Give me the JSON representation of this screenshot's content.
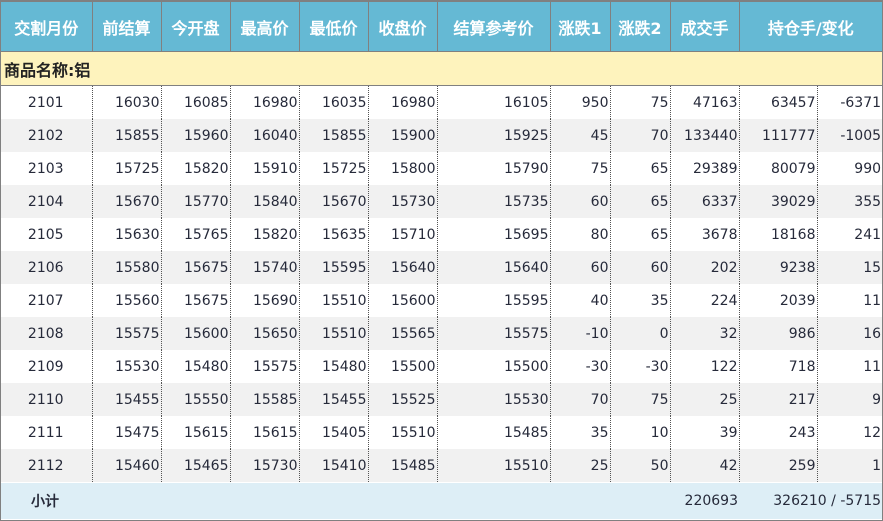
{
  "headers": [
    "交割月份",
    "前结算",
    "今开盘",
    "最高价",
    "最低价",
    "收盘价",
    "结算参考价",
    "涨跌1",
    "涨跌2",
    "成交手",
    "持仓手/变化"
  ],
  "category_label": "商品名称:铝",
  "rows": [
    [
      "2101",
      "16030",
      "16085",
      "16980",
      "16035",
      "16980",
      "16105",
      "950",
      "75",
      "47163",
      "63457",
      "-6371"
    ],
    [
      "2102",
      "15855",
      "15960",
      "16040",
      "15855",
      "15900",
      "15925",
      "45",
      "70",
      "133440",
      "111777",
      "-1005"
    ],
    [
      "2103",
      "15725",
      "15820",
      "15910",
      "15725",
      "15800",
      "15790",
      "75",
      "65",
      "29389",
      "80079",
      "990"
    ],
    [
      "2104",
      "15670",
      "15770",
      "15840",
      "15670",
      "15730",
      "15735",
      "60",
      "65",
      "6337",
      "39029",
      "355"
    ],
    [
      "2105",
      "15630",
      "15765",
      "15820",
      "15635",
      "15710",
      "15695",
      "80",
      "65",
      "3678",
      "18168",
      "241"
    ],
    [
      "2106",
      "15580",
      "15675",
      "15740",
      "15595",
      "15640",
      "15640",
      "60",
      "60",
      "202",
      "9238",
      "15"
    ],
    [
      "2107",
      "15560",
      "15675",
      "15690",
      "15510",
      "15600",
      "15595",
      "40",
      "35",
      "224",
      "2039",
      "11"
    ],
    [
      "2108",
      "15575",
      "15600",
      "15650",
      "15510",
      "15565",
      "15575",
      "-10",
      "0",
      "32",
      "986",
      "16"
    ],
    [
      "2109",
      "15530",
      "15480",
      "15575",
      "15480",
      "15500",
      "15500",
      "-30",
      "-30",
      "122",
      "718",
      "11"
    ],
    [
      "2110",
      "15455",
      "15550",
      "15585",
      "15455",
      "15525",
      "15530",
      "70",
      "75",
      "25",
      "217",
      "9"
    ],
    [
      "2111",
      "15475",
      "15615",
      "15615",
      "15405",
      "15510",
      "15485",
      "35",
      "10",
      "39",
      "243",
      "12"
    ],
    [
      "2112",
      "15460",
      "15465",
      "15730",
      "15410",
      "15485",
      "15510",
      "25",
      "50",
      "42",
      "259",
      "1"
    ]
  ],
  "subtotal": {
    "label": "小计",
    "volume": "220693",
    "open_interest": "326210 / -5715"
  }
}
